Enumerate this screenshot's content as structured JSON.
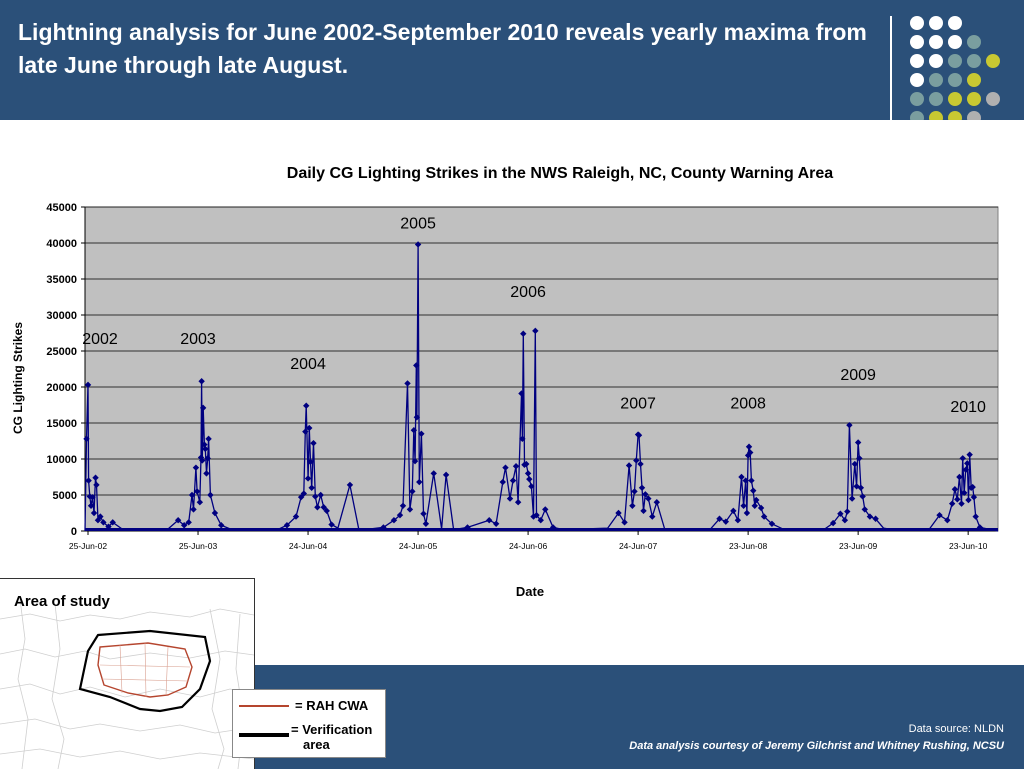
{
  "header": {
    "title": "Lightning analysis for June 2002-September 2010 reveals yearly maxima from late June through late August."
  },
  "colors": {
    "background": "#2b5079",
    "plot_bg": "#c0c0c0",
    "series": "#000080",
    "dots_white": "#ffffff",
    "dots_teal": "#7a9e9f",
    "dots_yellow": "#c8c832",
    "dots_grey": "#b0b0b0",
    "rah_cwa_line": "#b5452e",
    "verification_line": "#000000"
  },
  "chart_data": {
    "type": "line",
    "title": "Daily CG Lighting Strikes in the NWS Raleigh, NC, County Warning Area",
    "xlabel": "Date",
    "ylabel": "CG Lighting Strikes",
    "ylim": [
      0,
      45000
    ],
    "yticks": [
      0,
      5000,
      10000,
      15000,
      20000,
      25000,
      30000,
      35000,
      40000,
      45000
    ],
    "grid": "horizontal",
    "x_ticks": [
      "25-Jun-02",
      "25-Jun-03",
      "24-Jun-04",
      "24-Jun-05",
      "24-Jun-06",
      "24-Jun-07",
      "23-Jun-08",
      "23-Jun-09",
      "23-Jun-10"
    ],
    "year_annotations": [
      {
        "label": "2002",
        "x": "2002-06-25",
        "y": 26000
      },
      {
        "label": "2003",
        "x": "2003-06-25",
        "y": 26000
      },
      {
        "label": "2004",
        "x": "2004-06-24",
        "y": 22500
      },
      {
        "label": "2005",
        "x": "2005-06-24",
        "y": 42000
      },
      {
        "label": "2006",
        "x": "2006-06-24",
        "y": 32500
      },
      {
        "label": "2007",
        "x": "2007-06-24",
        "y": 17000
      },
      {
        "label": "2008",
        "x": "2008-06-23",
        "y": 17000
      },
      {
        "label": "2009",
        "x": "2009-06-23",
        "y": 21000
      },
      {
        "label": "2010",
        "x": "2010-06-23",
        "y": 16500
      }
    ],
    "series": [
      {
        "points": [
          [
            "2002-06-15",
            0
          ],
          [
            "2002-06-20",
            12800
          ],
          [
            "2002-06-25",
            20300
          ],
          [
            "2002-06-27",
            7000
          ],
          [
            "2002-07-01",
            4800
          ],
          [
            "2002-07-05",
            3500
          ],
          [
            "2002-07-10",
            4700
          ],
          [
            "2002-07-15",
            2500
          ],
          [
            "2002-07-20",
            7400
          ],
          [
            "2002-07-23",
            6400
          ],
          [
            "2002-07-28",
            1500
          ],
          [
            "2002-08-05",
            2000
          ],
          [
            "2002-08-15",
            1200
          ],
          [
            "2002-09-01",
            600
          ],
          [
            "2002-09-15",
            1200
          ],
          [
            "2002-10-15",
            300
          ],
          [
            "2002-12-01",
            100
          ],
          [
            "2003-03-15",
            200
          ],
          [
            "2003-04-20",
            1500
          ],
          [
            "2003-05-10",
            800
          ],
          [
            "2003-05-25",
            1200
          ],
          [
            "2003-06-05",
            5000
          ],
          [
            "2003-06-10",
            3000
          ],
          [
            "2003-06-18",
            8800
          ],
          [
            "2003-06-22",
            5500
          ],
          [
            "2003-07-01",
            4000
          ],
          [
            "2003-07-05",
            10200
          ],
          [
            "2003-07-07",
            20800
          ],
          [
            "2003-07-09",
            9800
          ],
          [
            "2003-07-12",
            17100
          ],
          [
            "2003-07-16",
            12000
          ],
          [
            "2003-07-19",
            11400
          ],
          [
            "2003-07-23",
            8000
          ],
          [
            "2003-07-27",
            10100
          ],
          [
            "2003-07-30",
            12800
          ],
          [
            "2003-08-05",
            5000
          ],
          [
            "2003-08-20",
            2500
          ],
          [
            "2003-09-10",
            800
          ],
          [
            "2003-10-15",
            200
          ],
          [
            "2004-03-15",
            200
          ],
          [
            "2004-04-15",
            800
          ],
          [
            "2004-05-15",
            2000
          ],
          [
            "2004-06-01",
            4700
          ],
          [
            "2004-06-10",
            5200
          ],
          [
            "2004-06-15",
            13800
          ],
          [
            "2004-06-18",
            17400
          ],
          [
            "2004-06-24",
            7300
          ],
          [
            "2004-06-28",
            14300
          ],
          [
            "2004-07-02",
            9600
          ],
          [
            "2004-07-06",
            6000
          ],
          [
            "2004-07-12",
            12200
          ],
          [
            "2004-07-18",
            4800
          ],
          [
            "2004-07-25",
            3300
          ],
          [
            "2004-08-05",
            5000
          ],
          [
            "2004-08-15",
            3300
          ],
          [
            "2004-08-25",
            2800
          ],
          [
            "2004-09-10",
            900
          ],
          [
            "2004-10-01",
            400
          ],
          [
            "2004-11-10",
            6400
          ],
          [
            "2004-12-10",
            100
          ],
          [
            "2005-03-01",
            500
          ],
          [
            "2005-04-05",
            1500
          ],
          [
            "2005-04-25",
            2200
          ],
          [
            "2005-05-05",
            3500
          ],
          [
            "2005-05-20",
            20500
          ],
          [
            "2005-05-28",
            3000
          ],
          [
            "2005-06-05",
            5500
          ],
          [
            "2005-06-10",
            14000
          ],
          [
            "2005-06-14",
            9700
          ],
          [
            "2005-06-18",
            23000
          ],
          [
            "2005-06-20",
            15800
          ],
          [
            "2005-06-24",
            39800
          ],
          [
            "2005-06-28",
            6800
          ],
          [
            "2005-07-05",
            13500
          ],
          [
            "2005-07-12",
            2400
          ],
          [
            "2005-07-20",
            1000
          ],
          [
            "2005-08-15",
            8000
          ],
          [
            "2005-09-10",
            300
          ],
          [
            "2005-09-25",
            7800
          ],
          [
            "2005-10-20",
            200
          ],
          [
            "2005-12-05",
            500
          ],
          [
            "2006-02-15",
            1500
          ],
          [
            "2006-03-10",
            1000
          ],
          [
            "2006-04-01",
            6800
          ],
          [
            "2006-04-10",
            8800
          ],
          [
            "2006-04-25",
            4500
          ],
          [
            "2006-05-05",
            7000
          ],
          [
            "2006-05-15",
            9000
          ],
          [
            "2006-05-22",
            4000
          ],
          [
            "2006-06-02",
            19100
          ],
          [
            "2006-06-05",
            12800
          ],
          [
            "2006-06-08",
            27400
          ],
          [
            "2006-06-12",
            9200
          ],
          [
            "2006-06-18",
            9300
          ],
          [
            "2006-06-24",
            8000
          ],
          [
            "2006-06-28",
            7200
          ],
          [
            "2006-07-05",
            6200
          ],
          [
            "2006-07-12",
            2000
          ],
          [
            "2006-07-18",
            27800
          ],
          [
            "2006-07-22",
            2200
          ],
          [
            "2006-08-05",
            1500
          ],
          [
            "2006-08-20",
            3000
          ],
          [
            "2006-09-15",
            500
          ],
          [
            "2006-10-20",
            200
          ],
          [
            "2007-03-15",
            400
          ],
          [
            "2007-04-20",
            2500
          ],
          [
            "2007-05-10",
            1200
          ],
          [
            "2007-05-25",
            9100
          ],
          [
            "2007-06-05",
            3500
          ],
          [
            "2007-06-12",
            5500
          ],
          [
            "2007-06-18",
            9800
          ],
          [
            "2007-06-24",
            13400
          ],
          [
            "2007-06-27",
            13300
          ],
          [
            "2007-07-02",
            9300
          ],
          [
            "2007-07-07",
            6000
          ],
          [
            "2007-07-12",
            2800
          ],
          [
            "2007-07-18",
            5100
          ],
          [
            "2007-07-28",
            4500
          ],
          [
            "2007-08-10",
            2000
          ],
          [
            "2007-08-25",
            4000
          ],
          [
            "2007-09-20",
            300
          ],
          [
            "2007-11-15",
            100
          ],
          [
            "2008-02-20",
            300
          ],
          [
            "2008-03-20",
            1700
          ],
          [
            "2008-04-10",
            1300
          ],
          [
            "2008-05-05",
            2800
          ],
          [
            "2008-05-20",
            1500
          ],
          [
            "2008-06-01",
            7500
          ],
          [
            "2008-06-08",
            3500
          ],
          [
            "2008-06-15",
            7000
          ],
          [
            "2008-06-19",
            2500
          ],
          [
            "2008-06-23",
            10500
          ],
          [
            "2008-06-26",
            11700
          ],
          [
            "2008-06-30",
            10900
          ],
          [
            "2008-07-04",
            7000
          ],
          [
            "2008-07-10",
            5600
          ],
          [
            "2008-07-15",
            3500
          ],
          [
            "2008-07-20",
            4300
          ],
          [
            "2008-08-05",
            3200
          ],
          [
            "2008-08-15",
            2000
          ],
          [
            "2008-09-10",
            1000
          ],
          [
            "2008-10-15",
            300
          ],
          [
            "2008-11-15",
            100
          ],
          [
            "2009-03-01",
            200
          ],
          [
            "2009-04-01",
            1100
          ],
          [
            "2009-04-25",
            2400
          ],
          [
            "2009-05-10",
            1500
          ],
          [
            "2009-05-18",
            2700
          ],
          [
            "2009-05-25",
            14700
          ],
          [
            "2009-06-03",
            4500
          ],
          [
            "2009-06-12",
            9300
          ],
          [
            "2009-06-18",
            6200
          ],
          [
            "2009-06-23",
            12300
          ],
          [
            "2009-06-27",
            10100
          ],
          [
            "2009-07-02",
            6000
          ],
          [
            "2009-07-08",
            4800
          ],
          [
            "2009-07-15",
            3000
          ],
          [
            "2009-08-01",
            2000
          ],
          [
            "2009-08-20",
            1700
          ],
          [
            "2009-09-15",
            400
          ],
          [
            "2009-10-30",
            100
          ],
          [
            "2010-02-15",
            300
          ],
          [
            "2010-03-20",
            2200
          ],
          [
            "2010-04-15",
            1500
          ],
          [
            "2010-05-01",
            3800
          ],
          [
            "2010-05-10",
            5800
          ],
          [
            "2010-05-18",
            4400
          ],
          [
            "2010-05-25",
            7500
          ],
          [
            "2010-06-01",
            3800
          ],
          [
            "2010-06-05",
            10100
          ],
          [
            "2010-06-10",
            5300
          ],
          [
            "2010-06-15",
            8500
          ],
          [
            "2010-06-20",
            9400
          ],
          [
            "2010-06-24",
            4300
          ],
          [
            "2010-06-28",
            10600
          ],
          [
            "2010-07-03",
            6000
          ],
          [
            "2010-07-08",
            6100
          ],
          [
            "2010-07-12",
            4700
          ],
          [
            "2010-07-18",
            2000
          ],
          [
            "2010-08-01",
            500
          ]
        ]
      }
    ]
  },
  "map": {
    "title": "Area of study"
  },
  "legend": {
    "rah_cwa": "= RAH CWA",
    "verification": "= Verification",
    "verification_cont": "area"
  },
  "footer": {
    "source": "Data source: NLDN",
    "credit": "Data analysis courtesy of Jeremy Gilchrist and Whitney Rushing, NCSU"
  }
}
